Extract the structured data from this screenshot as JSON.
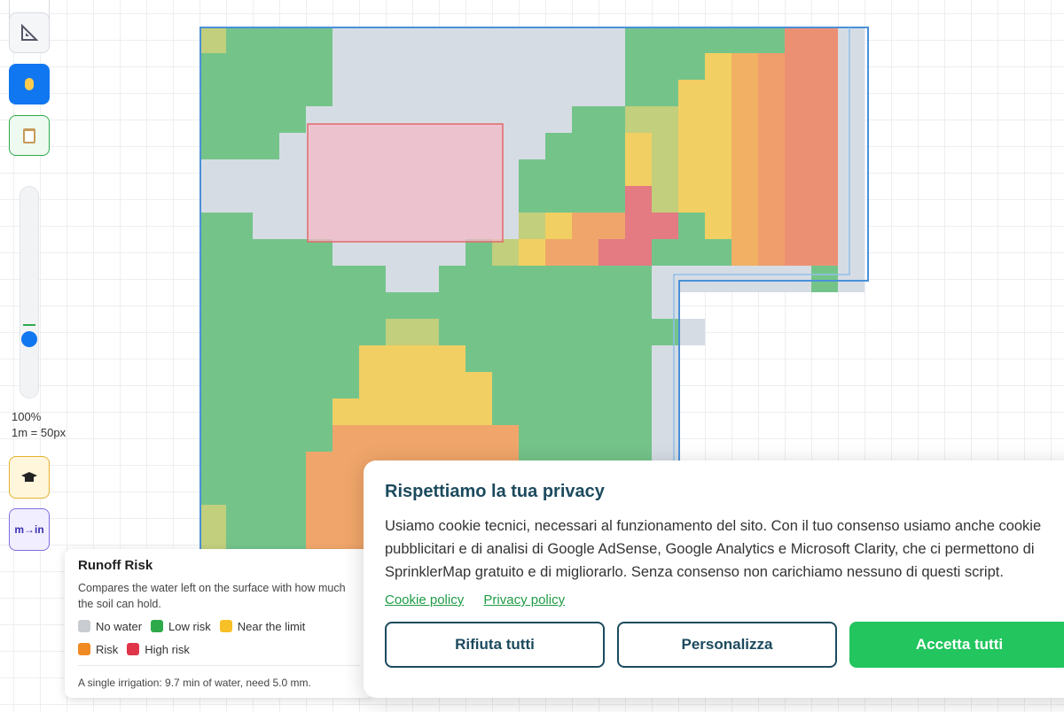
{
  "toolbar": {
    "zoom": "100%",
    "scale": "1m = 50px",
    "units_button": "m→in"
  },
  "legend": {
    "title": "Runoff Risk",
    "description": "Compares the water left on the surface with how much the soil can hold.",
    "items": [
      {
        "label": "No water",
        "color": "#c9ccd1"
      },
      {
        "label": "Low risk",
        "color": "#2faa4a"
      },
      {
        "label": "Near the limit",
        "color": "#f6c026"
      },
      {
        "label": "Risk",
        "color": "#f08a24"
      },
      {
        "label": "High risk",
        "color": "#e0344a"
      }
    ],
    "note": "A single irrigation: 9.7 min of water, need 5.0 mm."
  },
  "cookie": {
    "title": "Rispettiamo la tua privacy",
    "lines": [
      "Usiamo cookie tecnici, necessari al funzionamento del sito. Con il tuo consenso usiamo anche cookie",
      "pubblicitari e di analisi di Google AdSense, Google Analytics e Microsoft Clarity, che ci permettono di",
      "SprinklerMap gratuito e di migliorarlo. Senza consenso non carichiamo nessuno di questi script."
    ],
    "links": [
      "Cookie policy",
      "Privacy policy"
    ],
    "buttons": [
      "Rifiuta tutti",
      "Personalizza",
      "Accetta tutti"
    ]
  }
}
